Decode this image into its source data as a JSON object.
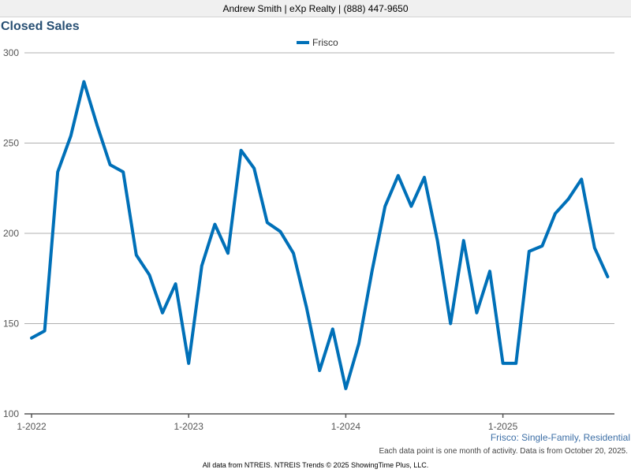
{
  "header": {
    "agent_line": "Andrew Smith | eXp Realty | (888) 447-9650"
  },
  "chart_data": {
    "type": "line",
    "title": "Closed Sales",
    "legend_placement": "top-center",
    "grid": true,
    "ylim": [
      100,
      300
    ],
    "y_ticks": [
      "100",
      "150",
      "200",
      "250",
      "300"
    ],
    "x_tick_labels": [
      "1-2022",
      "1-2023",
      "1-2024",
      "1-2025"
    ],
    "series": [
      {
        "name": "Frisco",
        "color": "#0070b8",
        "x": [
          "1-2022",
          "2-2022",
          "3-2022",
          "4-2022",
          "5-2022",
          "6-2022",
          "7-2022",
          "8-2022",
          "9-2022",
          "10-2022",
          "11-2022",
          "12-2022",
          "1-2023",
          "2-2023",
          "3-2023",
          "4-2023",
          "5-2023",
          "6-2023",
          "7-2023",
          "8-2023",
          "9-2023",
          "10-2023",
          "11-2023",
          "12-2023",
          "1-2024",
          "2-2024",
          "3-2024",
          "4-2024",
          "5-2024",
          "6-2024",
          "7-2024",
          "8-2024",
          "9-2024",
          "10-2024",
          "11-2024",
          "12-2024",
          "1-2025",
          "2-2025",
          "3-2025",
          "4-2025",
          "5-2025",
          "6-2025",
          "7-2025",
          "8-2025",
          "9-2025"
        ],
        "values": [
          142,
          146,
          234,
          254,
          284,
          260,
          238,
          234,
          188,
          177,
          156,
          172,
          128,
          182,
          205,
          189,
          246,
          236,
          206,
          201,
          189,
          159,
          124,
          147,
          114,
          139,
          179,
          215,
          232,
          215,
          231,
          196,
          150,
          196,
          156,
          179,
          128,
          128,
          190,
          193,
          211,
          219,
          230,
          192,
          176
        ]
      }
    ],
    "footer_label": "Frisco: Single-Family, Residential",
    "note": "Each data point is one month of activity. Data is from October 20, 2025."
  },
  "footer": {
    "credit": "All data from NTREIS. NTREIS Trends © 2025 ShowingTime Plus, LLC."
  }
}
